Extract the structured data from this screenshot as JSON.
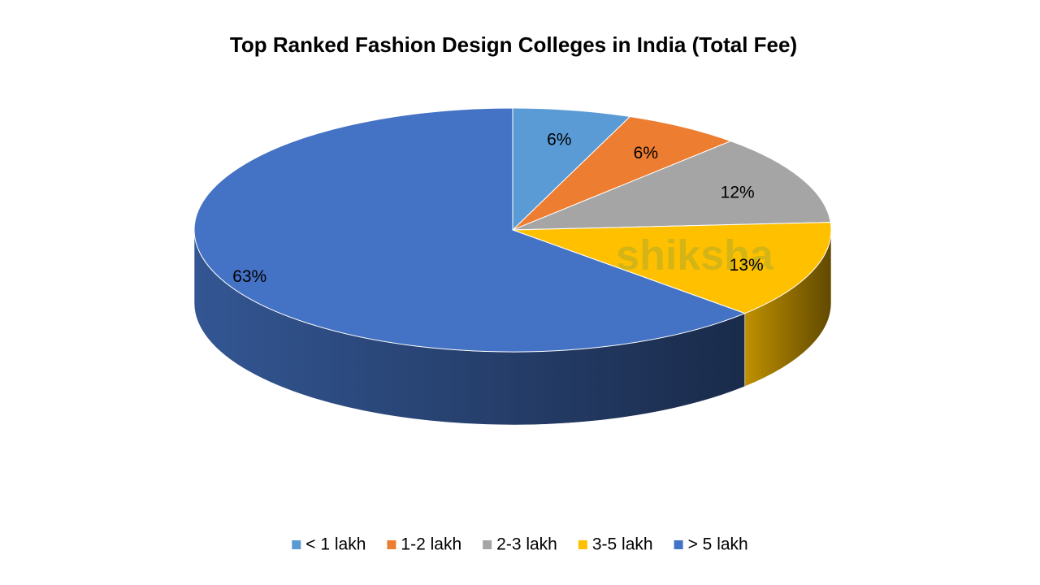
{
  "chart_data": {
    "type": "pie3d",
    "title": "Top Ranked Fashion Design Colleges in India (Total Fee)",
    "categories": [
      "< 1 lakh",
      "1-2 lakh",
      "2-3 lakh",
      "3-5 lakh",
      "> 5 lakh"
    ],
    "values": [
      6,
      6,
      12,
      13,
      63
    ],
    "value_labels": [
      "6%",
      "6%",
      "12%",
      "13%",
      "63%"
    ],
    "colors": [
      "#5b9bd5",
      "#ed7d31",
      "#a5a5a5",
      "#ffc000",
      "#4472c4"
    ],
    "legend": "bottom",
    "watermark": "shiksha"
  }
}
